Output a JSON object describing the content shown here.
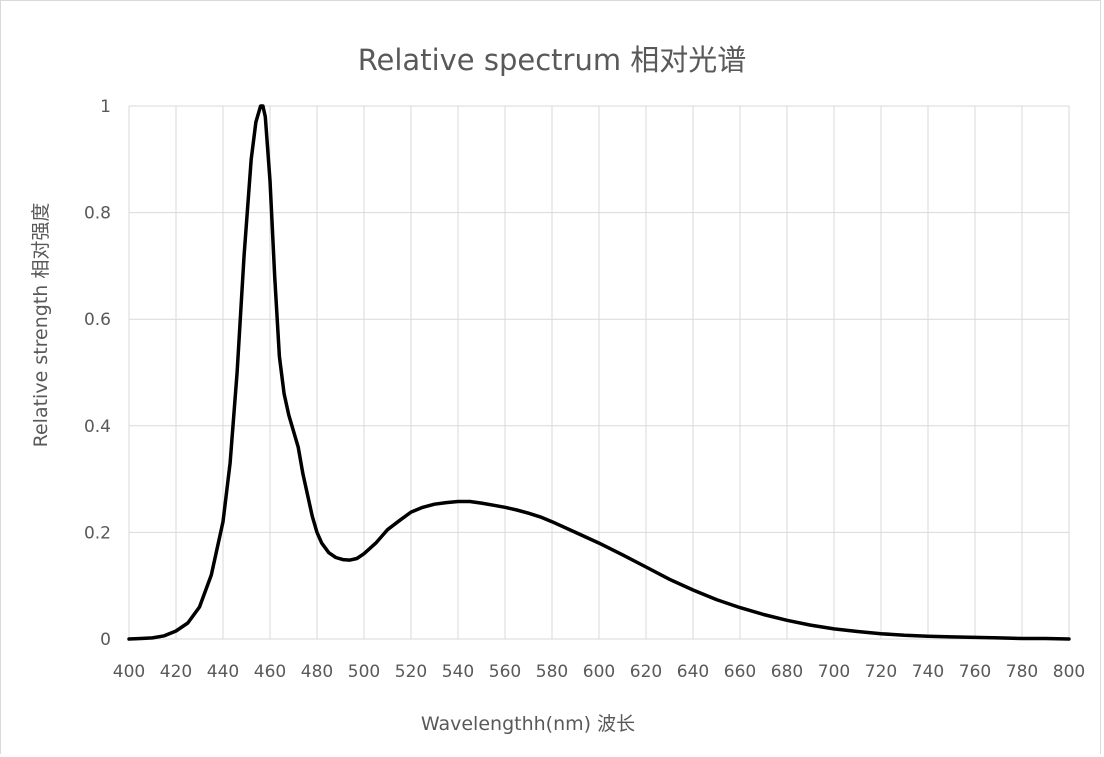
{
  "chart_data": {
    "type": "line",
    "title": "Relative spectrum 相对光谱",
    "xlabel": "Wavelengthh(nm)  波长",
    "ylabel": "Relative  strength  相对强度",
    "xlim": [
      400,
      800
    ],
    "ylim": [
      0,
      1
    ],
    "grid": true,
    "legend": "none",
    "x_ticks": [
      "400",
      "420",
      "440",
      "460",
      "480",
      "500",
      "520",
      "540",
      "560",
      "580",
      "600",
      "620",
      "640",
      "660",
      "680",
      "700",
      "720",
      "740",
      "760",
      "780",
      "800"
    ],
    "y_ticks": [
      "0",
      "0.2",
      "0.4",
      "0.6",
      "0.8",
      "1"
    ],
    "series": [
      {
        "x": [
          400,
          405,
          410,
          415,
          420,
          425,
          430,
          435,
          440,
          443,
          446,
          449,
          452,
          454,
          456,
          457,
          458,
          460,
          462,
          464,
          466,
          468,
          470,
          472,
          474,
          476,
          478,
          480,
          482,
          485,
          488,
          491,
          494,
          497,
          500,
          505,
          510,
          515,
          520,
          525,
          530,
          535,
          540,
          545,
          550,
          555,
          560,
          565,
          570,
          575,
          580,
          590,
          600,
          610,
          620,
          630,
          640,
          650,
          660,
          670,
          680,
          690,
          700,
          710,
          720,
          730,
          740,
          750,
          760,
          770,
          780,
          790,
          800
        ],
        "y": [
          0.0,
          0.001,
          0.002,
          0.006,
          0.015,
          0.03,
          0.06,
          0.12,
          0.22,
          0.33,
          0.5,
          0.72,
          0.9,
          0.97,
          1.0,
          1.0,
          0.98,
          0.86,
          0.68,
          0.53,
          0.46,
          0.42,
          0.39,
          0.36,
          0.31,
          0.27,
          0.23,
          0.2,
          0.18,
          0.162,
          0.153,
          0.149,
          0.148,
          0.151,
          0.16,
          0.18,
          0.205,
          0.222,
          0.238,
          0.247,
          0.253,
          0.256,
          0.258,
          0.258,
          0.255,
          0.251,
          0.247,
          0.242,
          0.236,
          0.229,
          0.22,
          0.2,
          0.18,
          0.158,
          0.135,
          0.112,
          0.092,
          0.074,
          0.059,
          0.046,
          0.035,
          0.026,
          0.019,
          0.014,
          0.01,
          0.007,
          0.005,
          0.004,
          0.003,
          0.002,
          0.001,
          0.001,
          0.0
        ],
        "color": "#000000"
      }
    ]
  }
}
